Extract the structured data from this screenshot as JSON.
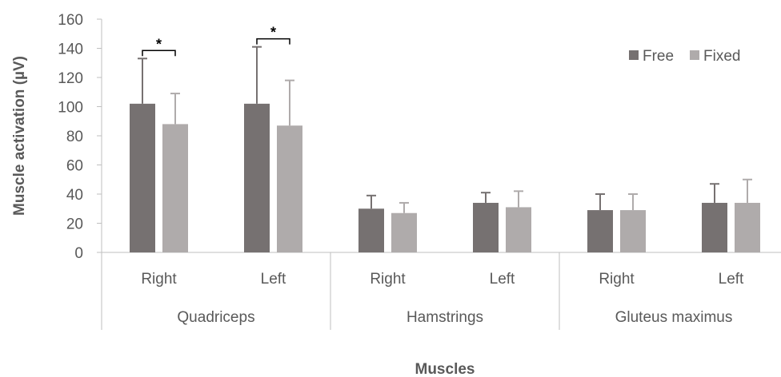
{
  "chart_data": {
    "type": "bar",
    "title": "",
    "xlabel": "Muscles",
    "ylabel": "Muscle activation (µV)",
    "ylim": [
      0,
      160
    ],
    "yticks": [
      "0",
      "20",
      "40",
      "60",
      "80",
      "100",
      "120",
      "140",
      "160"
    ],
    "groups": [
      "Quadriceps",
      "Hamstrings",
      "Gluteus maximus"
    ],
    "categories": [
      "Right",
      "Left",
      "Right",
      "Left",
      "Right",
      "Left"
    ],
    "series": [
      {
        "name": "Free",
        "color": "#767171",
        "values": [
          102,
          102,
          30,
          34,
          29,
          34
        ],
        "error_upper": [
          133,
          141,
          39,
          41,
          40,
          47
        ]
      },
      {
        "name": "Fixed",
        "color": "#afabab",
        "values": [
          88,
          87,
          27,
          31,
          29,
          34
        ],
        "error_upper": [
          109,
          118,
          34,
          42,
          40,
          50
        ]
      }
    ],
    "legend_position": "top-right",
    "grid": false,
    "annotations": [
      {
        "text": "*",
        "category_index": 0,
        "between_series": [
          "Free",
          "Fixed"
        ]
      },
      {
        "text": "*",
        "category_index": 1,
        "between_series": [
          "Free",
          "Fixed"
        ]
      }
    ]
  }
}
